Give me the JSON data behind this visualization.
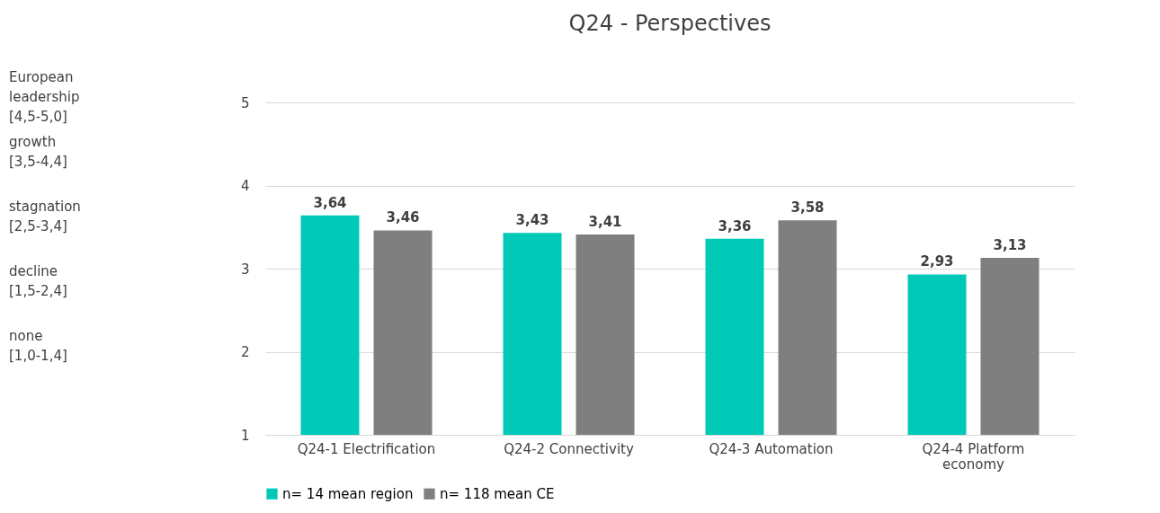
{
  "chart_data": {
    "type": "bar",
    "title": "Q24 - Perspectives",
    "categories": [
      "Q24-1 Electrification",
      "Q24-2 Connectivity",
      "Q24-3 Automation",
      "Q24-4 Platform economy"
    ],
    "series": [
      {
        "name": "n= 14 mean region",
        "color": "#00c9b7",
        "values": [
          3.64,
          3.43,
          3.36,
          2.93
        ],
        "value_labels": [
          "3,64",
          "3,43",
          "3,36",
          "2,93"
        ]
      },
      {
        "name": "n= 118 mean CE",
        "color": "#7f7f7f",
        "values": [
          3.46,
          3.41,
          3.58,
          3.13
        ],
        "value_labels": [
          "3,46",
          "3,41",
          "3,58",
          "3,13"
        ]
      }
    ],
    "ylim": [
      1,
      5
    ],
    "yticks": [
      1,
      2,
      3,
      4,
      5
    ],
    "grid": "y",
    "legend": "bottom",
    "annotations": [
      "European leadership [4,5-5,0]",
      "growth [3,5-4,4]",
      "stagnation [2,5-3,4]",
      "decline [1,5-2,4]",
      "none [1,0-1,4]"
    ]
  }
}
